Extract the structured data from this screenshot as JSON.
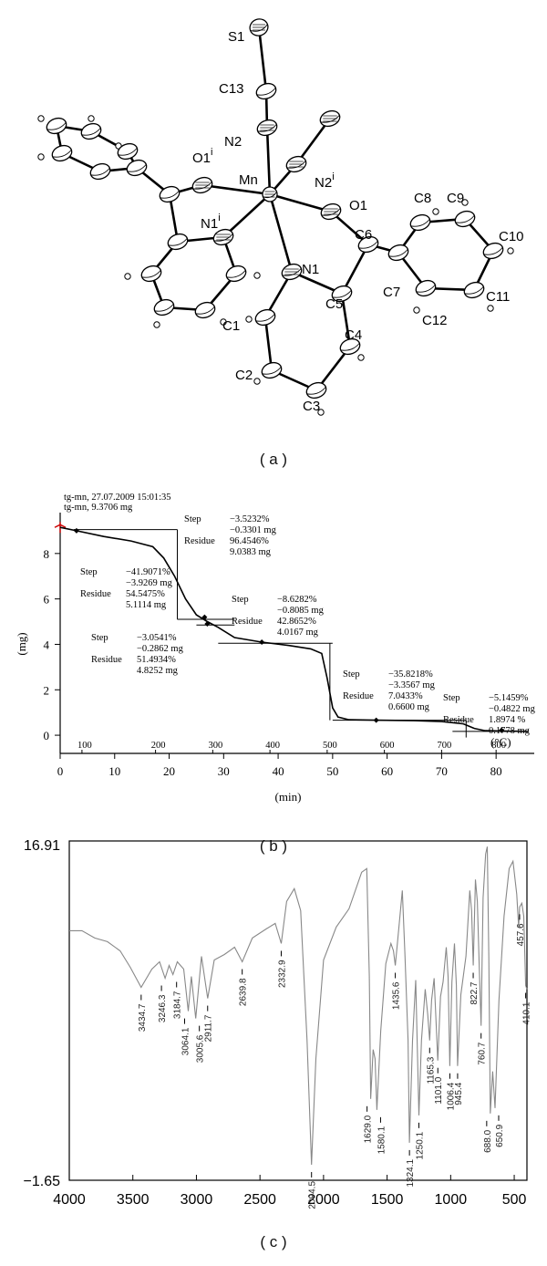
{
  "captions": {
    "a": "( a )",
    "b": "( b )",
    "c": "( c )"
  },
  "molecule": {
    "atom_labels": [
      {
        "id": "S1",
        "text": "S1"
      },
      {
        "id": "C13",
        "text": "C13"
      },
      {
        "id": "N2",
        "text": "N2"
      },
      {
        "id": "O1i",
        "text": "O1",
        "sup": "i"
      },
      {
        "id": "Mn",
        "text": "Mn"
      },
      {
        "id": "N2i",
        "text": "N2",
        "sup": "i"
      },
      {
        "id": "N1i",
        "text": "N1",
        "sup": "i"
      },
      {
        "id": "O1",
        "text": "O1"
      },
      {
        "id": "C6",
        "text": "C6"
      },
      {
        "id": "C8",
        "text": "C8"
      },
      {
        "id": "C9",
        "text": "C9"
      },
      {
        "id": "C10",
        "text": "C10"
      },
      {
        "id": "N1",
        "text": "N1"
      },
      {
        "id": "C5",
        "text": "C5"
      },
      {
        "id": "C7",
        "text": "C7"
      },
      {
        "id": "C11",
        "text": "C11"
      },
      {
        "id": "C12",
        "text": "C12"
      },
      {
        "id": "C1",
        "text": "C1"
      },
      {
        "id": "C4",
        "text": "C4"
      },
      {
        "id": "C2",
        "text": "C2"
      },
      {
        "id": "C3",
        "text": "C3"
      }
    ]
  },
  "tg_chart": {
    "type": "line",
    "header_lines": [
      "tg-mn, 27.07.2009 15:01:35",
      "tg-mn, 9.3706 mg"
    ],
    "xlabel": "(min)",
    "ylabel": "(mg)",
    "temp_unit": "(°C)",
    "xlim": [
      0,
      87
    ],
    "ylim": [
      -0.8,
      9.8
    ],
    "x_ticks": [
      0,
      10,
      20,
      30,
      40,
      50,
      60,
      70,
      80
    ],
    "y_ticks": [
      0,
      2,
      4,
      6,
      8
    ],
    "temp_ticks": [
      {
        "t": "100",
        "x": 4
      },
      {
        "t": "200",
        "x": 17.5
      },
      {
        "t": "300",
        "x": 28
      },
      {
        "t": "400",
        "x": 38.5
      },
      {
        "t": "500",
        "x": 49
      },
      {
        "t": "600",
        "x": 59.5
      },
      {
        "t": "700",
        "x": 70
      },
      {
        "t": "800",
        "x": 80
      }
    ],
    "curve": [
      [
        0,
        9.15
      ],
      [
        3,
        9.0
      ],
      [
        8,
        8.75
      ],
      [
        13,
        8.55
      ],
      [
        17,
        8.3
      ],
      [
        19,
        7.8
      ],
      [
        21,
        7.0
      ],
      [
        23,
        6.0
      ],
      [
        25,
        5.3
      ],
      [
        27,
        5.0
      ],
      [
        29,
        4.75
      ],
      [
        32,
        4.3
      ],
      [
        37,
        4.1
      ],
      [
        42,
        3.95
      ],
      [
        46,
        3.8
      ],
      [
        48,
        3.6
      ],
      [
        49,
        2.5
      ],
      [
        50,
        1.2
      ],
      [
        51,
        0.8
      ],
      [
        53,
        0.68
      ],
      [
        58,
        0.66
      ],
      [
        65,
        0.64
      ],
      [
        70,
        0.6
      ],
      [
        74,
        0.5
      ],
      [
        76,
        0.3
      ],
      [
        78,
        0.2
      ],
      [
        82,
        0.18
      ],
      [
        86,
        0.17
      ]
    ],
    "step_annotations": [
      {
        "lines": [
          "Step",
          "Residue"
        ],
        "values": [
          "−3.5232%",
          "−0.3301 mg",
          "96.4546%",
          "9.0383 mg"
        ]
      },
      {
        "lines": [
          "Step",
          "Residue"
        ],
        "values": [
          "−41.9071%",
          "−3.9269 mg",
          "54.5475%",
          "5.1114 mg"
        ]
      },
      {
        "lines": [
          "Step",
          "Residue"
        ],
        "values": [
          "−8.6282%",
          "−0.8085 mg",
          "42.8652%",
          "4.0167 mg"
        ]
      },
      {
        "lines": [
          "Step",
          "Residue"
        ],
        "values": [
          "−3.0541%",
          "−0.2862 mg",
          "51.4934%",
          "4.8252 mg"
        ]
      },
      {
        "lines": [
          "Step",
          "Residue"
        ],
        "values": [
          "−35.8218%",
          "−3.3567 mg",
          "7.0433%",
          "0.6600 mg"
        ]
      },
      {
        "lines": [
          "Step",
          "Residue"
        ],
        "values": [
          "−5.1459%",
          "−0.4822 mg",
          "1.8974 %",
          "0.1778 mg"
        ]
      }
    ]
  },
  "ir_chart": {
    "type": "line",
    "y_top_label": "16.91",
    "y_bottom_label": "−1.65",
    "ylim": [
      -1.65,
      16.91
    ],
    "xlim": [
      4000,
      400
    ],
    "x_ticks": [
      "4000",
      "3500",
      "3000",
      "2500",
      "2000",
      "1500",
      "1000",
      "500"
    ],
    "peak_labels": [
      "3434.7",
      "3246.3",
      "3184.7",
      "3064.1",
      "3005.6",
      "2911.7",
      "2639.8",
      "2332.9",
      "2094.5",
      "1629.0",
      "1580.1",
      "1435.6",
      "1324.1",
      "1250.1",
      "1165.3",
      "1101.0",
      "1006.4",
      "945.4",
      "822.7",
      "760.7",
      "688.0",
      "650.9",
      "457.6",
      "410.1"
    ],
    "peak_positions": [
      3434.7,
      3246.3,
      3184.7,
      3064.1,
      3005.6,
      2911.7,
      2639.8,
      2332.9,
      2094.5,
      1629.0,
      1580.1,
      1435.6,
      1324.1,
      1250.1,
      1165.3,
      1101.0,
      1006.4,
      945.4,
      822.7,
      760.7,
      688.0,
      650.9,
      457.6,
      410.1
    ],
    "spectrum": [
      [
        4000,
        12.0
      ],
      [
        3900,
        12.0
      ],
      [
        3800,
        11.6
      ],
      [
        3700,
        11.4
      ],
      [
        3600,
        10.9
      ],
      [
        3520,
        10.0
      ],
      [
        3434.7,
        8.9
      ],
      [
        3350,
        9.9
      ],
      [
        3290,
        10.3
      ],
      [
        3246.3,
        9.4
      ],
      [
        3215,
        10.1
      ],
      [
        3184.7,
        9.6
      ],
      [
        3150,
        10.3
      ],
      [
        3100,
        9.9
      ],
      [
        3064.1,
        7.6
      ],
      [
        3040,
        9.5
      ],
      [
        3005.6,
        7.2
      ],
      [
        2960,
        10.6
      ],
      [
        2911.7,
        8.3
      ],
      [
        2860,
        10.4
      ],
      [
        2780,
        10.7
      ],
      [
        2700,
        11.1
      ],
      [
        2639.8,
        10.3
      ],
      [
        2560,
        11.6
      ],
      [
        2450,
        12.1
      ],
      [
        2380,
        12.4
      ],
      [
        2332.9,
        11.3
      ],
      [
        2290,
        13.6
      ],
      [
        2230,
        14.3
      ],
      [
        2180,
        13.1
      ],
      [
        2130,
        6.0
      ],
      [
        2094.5,
        -0.8
      ],
      [
        2060,
        5.0
      ],
      [
        2000,
        10.4
      ],
      [
        1900,
        12.2
      ],
      [
        1800,
        13.2
      ],
      [
        1700,
        15.2
      ],
      [
        1660,
        15.4
      ],
      [
        1640,
        9.5
      ],
      [
        1629.0,
        2.8
      ],
      [
        1610,
        5.5
      ],
      [
        1595,
        5.0
      ],
      [
        1580.1,
        2.2
      ],
      [
        1550,
        6.5
      ],
      [
        1510,
        10.2
      ],
      [
        1470,
        11.3
      ],
      [
        1450,
        10.9
      ],
      [
        1435.6,
        10.1
      ],
      [
        1410,
        12.0
      ],
      [
        1380,
        14.2
      ],
      [
        1360,
        10.8
      ],
      [
        1335,
        6.0
      ],
      [
        1324.1,
        0.4
      ],
      [
        1300,
        6.0
      ],
      [
        1275,
        9.3
      ],
      [
        1250.1,
        1.9
      ],
      [
        1230,
        6.0
      ],
      [
        1200,
        8.8
      ],
      [
        1180,
        7.4
      ],
      [
        1165.3,
        6.0
      ],
      [
        1150,
        8.2
      ],
      [
        1130,
        9.4
      ],
      [
        1101.0,
        4.9
      ],
      [
        1080,
        8.4
      ],
      [
        1060,
        9.2
      ],
      [
        1035,
        11.1
      ],
      [
        1020,
        9.5
      ],
      [
        1006.4,
        4.6
      ],
      [
        990,
        9.2
      ],
      [
        970,
        11.3
      ],
      [
        955,
        9.0
      ],
      [
        945.4,
        4.6
      ],
      [
        920,
        8.5
      ],
      [
        880,
        10.6
      ],
      [
        850,
        14.2
      ],
      [
        835,
        13.1
      ],
      [
        822.7,
        10.1
      ],
      [
        805,
        14.8
      ],
      [
        790,
        13.6
      ],
      [
        775,
        10.0
      ],
      [
        760.7,
        6.8
      ],
      [
        745,
        13.8
      ],
      [
        725,
        16.2
      ],
      [
        712,
        16.6
      ],
      [
        700,
        10.5
      ],
      [
        688.0,
        2.0
      ],
      [
        670,
        4.3
      ],
      [
        650.9,
        2.3
      ],
      [
        620,
        8.2
      ],
      [
        580,
        12.8
      ],
      [
        540,
        15.4
      ],
      [
        510,
        15.8
      ],
      [
        480,
        14.0
      ],
      [
        465,
        12.2
      ],
      [
        457.6,
        13.3
      ],
      [
        440,
        13.5
      ],
      [
        425,
        12.8
      ],
      [
        410.1,
        9.0
      ],
      [
        400,
        8.8
      ]
    ]
  }
}
